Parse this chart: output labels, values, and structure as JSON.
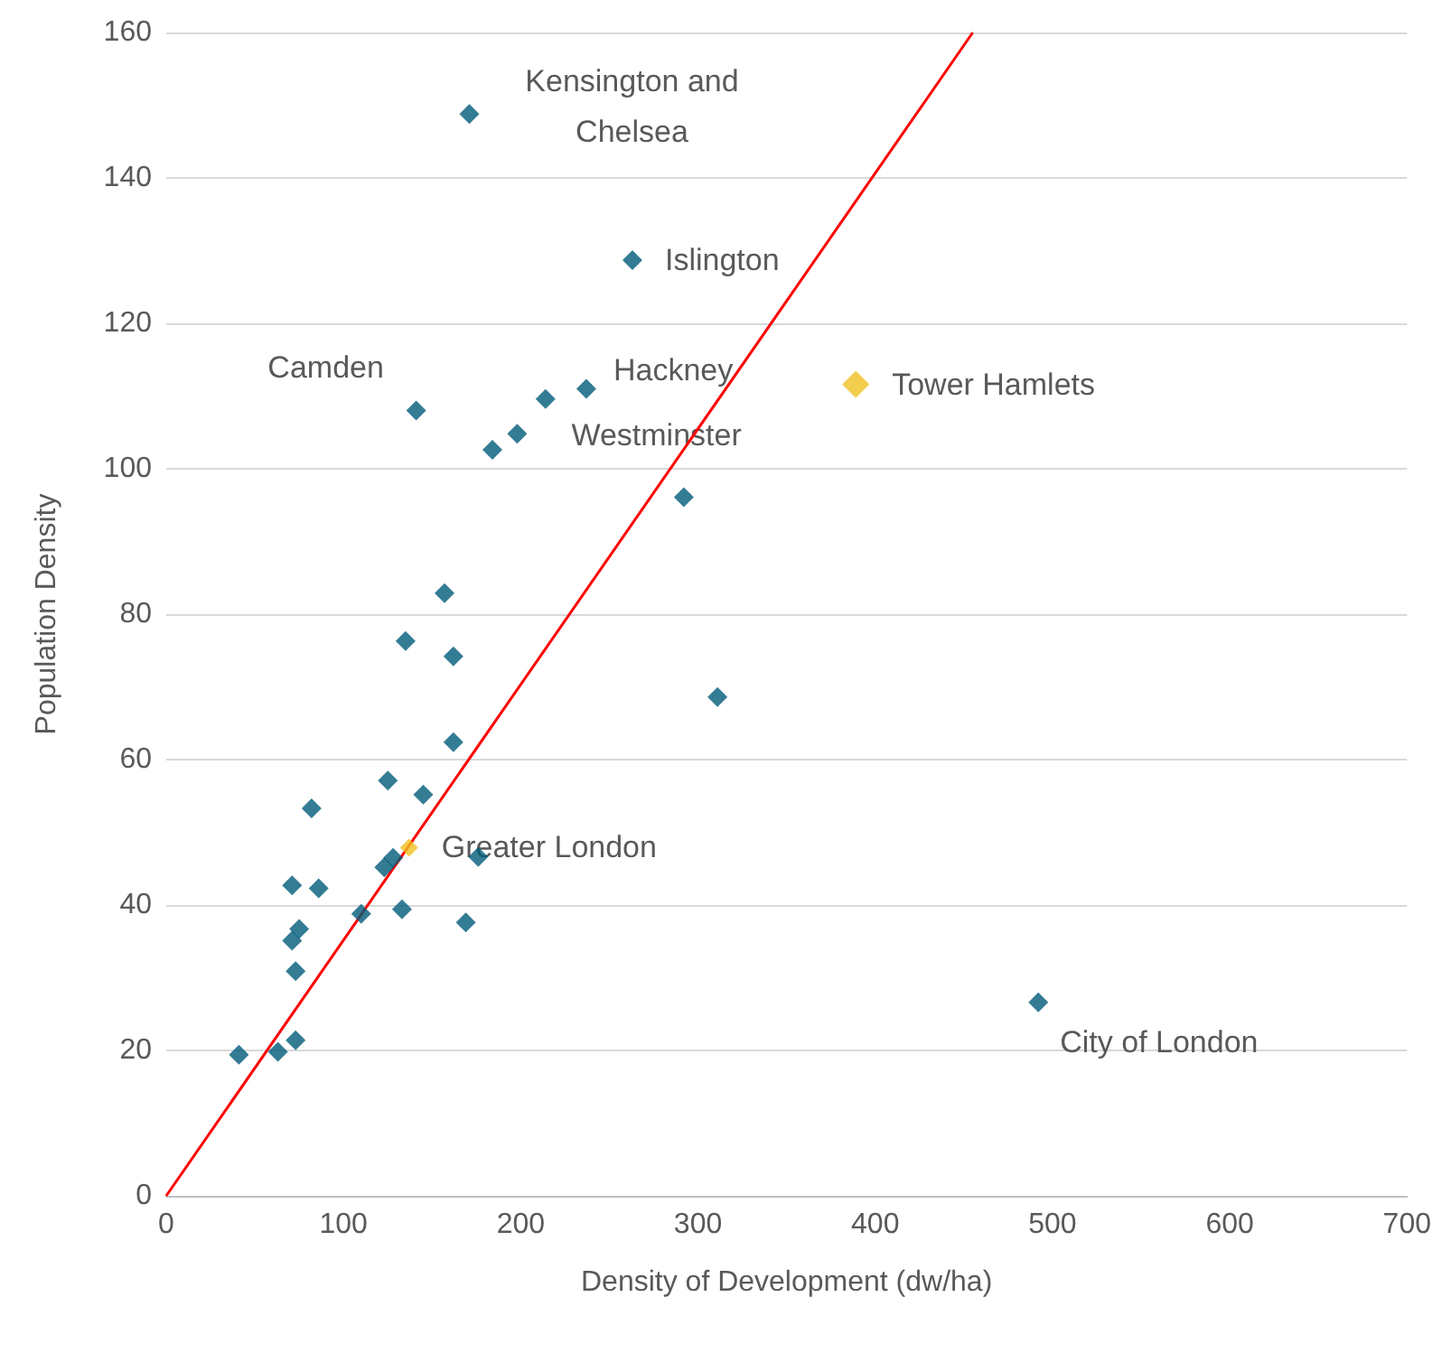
{
  "chart_data": {
    "type": "scatter",
    "xlabel": "Density of Development (dw/ha)",
    "ylabel": "Population Density",
    "xlim": [
      0,
      700
    ],
    "xticks": [
      0,
      100,
      200,
      300,
      400,
      500,
      600,
      700
    ],
    "ylim": [
      0,
      160
    ],
    "yticks": [
      0,
      20,
      40,
      60,
      80,
      100,
      120,
      140,
      160
    ],
    "grid": "y",
    "marker": "diamond",
    "series": [
      {
        "color": "#005b79",
        "x": [
          171,
          263,
          141,
          184,
          198,
          214,
          237,
          292,
          311,
          492,
          157,
          135,
          162,
          162,
          125,
          145,
          82,
          176,
          123,
          128,
          71,
          86,
          110,
          133,
          169,
          75,
          71,
          73,
          41,
          63,
          73
        ],
        "values": [
          148.8,
          128.7,
          108,
          102.6,
          104.8,
          109.6,
          111,
          96.1,
          68.6,
          26.6,
          82.9,
          76.3,
          74.2,
          62.4,
          57.1,
          55.2,
          53.3,
          46.6,
          45.2,
          46.5,
          42.7,
          42.3,
          38.8,
          39.4,
          37.6,
          36.7,
          35.1,
          30.9,
          19.4,
          19.8,
          21.4
        ]
      },
      {
        "color": "#f0c020",
        "x": [
          389,
          137
        ],
        "values": [
          111.6,
          47.9
        ]
      },
      {
        "type": "line",
        "color": "#ff0000",
        "marker": "none",
        "x": [
          0,
          455
        ],
        "values": [
          0,
          160
        ]
      }
    ],
    "annotations": [
      {
        "text": "Kensington and\nChelsea",
        "x": 171,
        "y": 148.8
      },
      {
        "text": "Islington",
        "x": 263,
        "y": 128.7
      },
      {
        "text": "Camden",
        "x": 141,
        "y": 108
      },
      {
        "text": "Hackney",
        "x": 237,
        "y": 111
      },
      {
        "text": "Westminster",
        "x": 198,
        "y": 104.8
      },
      {
        "text": "Tower Hamlets",
        "x": 389,
        "y": 111.6
      },
      {
        "text": "Greater London",
        "x": 137,
        "y": 47.9
      },
      {
        "text": "City of London",
        "x": 492,
        "y": 26.6
      }
    ]
  }
}
